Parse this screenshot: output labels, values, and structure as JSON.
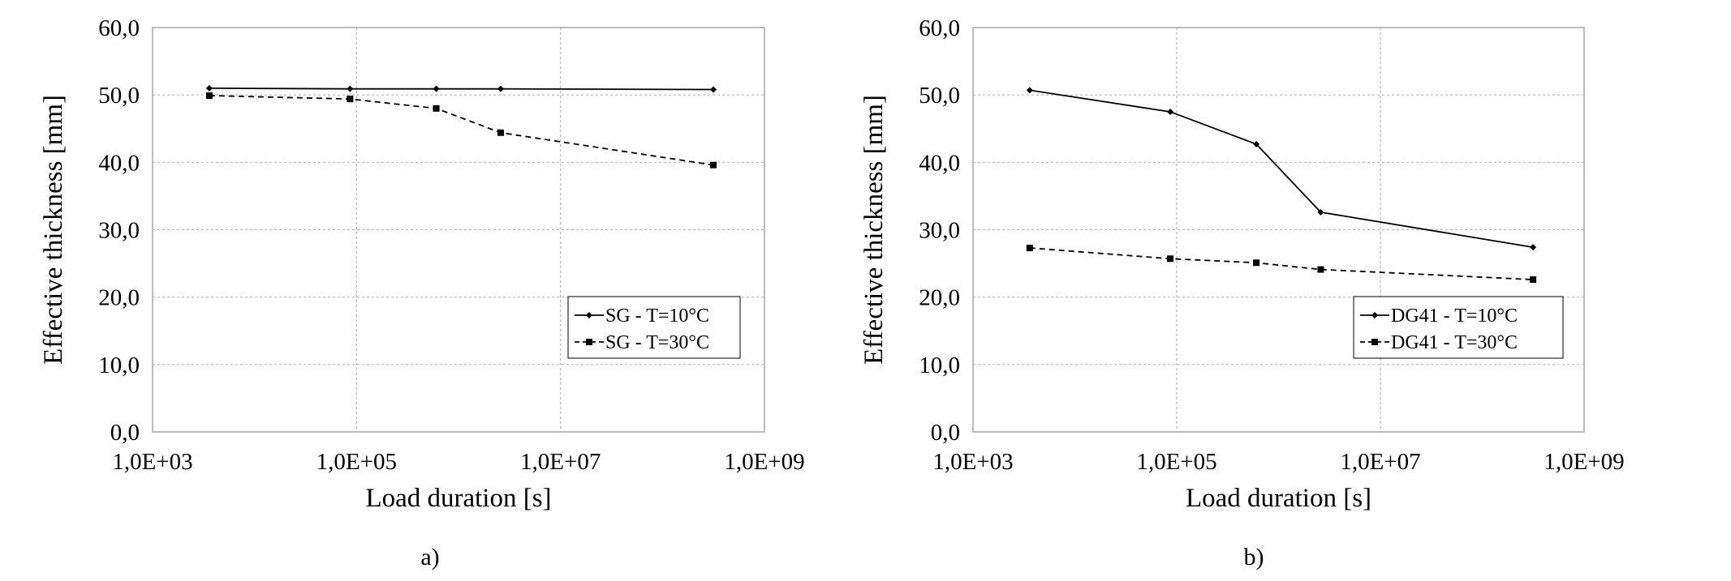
{
  "chart_data": [
    {
      "type": "line",
      "caption": "a)",
      "xlabel": "Load duration [s]",
      "ylabel": "Effective thickness [mm]",
      "xscale": "log",
      "xlim": [
        1000,
        1000000000
      ],
      "ylim": [
        0,
        60
      ],
      "xticks": [
        1000,
        100000,
        10000000,
        1000000000
      ],
      "xtick_labels": [
        "1,0E+03",
        "1,0E+05",
        "1,0E+07",
        "1,0E+09"
      ],
      "yticks": [
        0,
        10,
        20,
        30,
        40,
        50,
        60
      ],
      "ytick_labels": [
        "0,0",
        "10,0",
        "20,0",
        "30,0",
        "40,0",
        "50,0",
        "60,0"
      ],
      "grid": true,
      "legend_position": "bottom-right",
      "series": [
        {
          "name": "SG - T=10°C",
          "style": "solid",
          "marker": "diamond",
          "x": [
            3600,
            86400,
            604800,
            2592000,
            315360000
          ],
          "y": [
            51.0,
            50.9,
            50.9,
            50.9,
            50.8
          ]
        },
        {
          "name": "SG - T=30°C",
          "style": "dashed",
          "marker": "square",
          "x": [
            3600,
            86400,
            604800,
            2592000,
            315360000
          ],
          "y": [
            49.9,
            49.4,
            48.0,
            44.4,
            39.6
          ]
        }
      ]
    },
    {
      "type": "line",
      "caption": "b)",
      "xlabel": "Load duration [s]",
      "ylabel": "Effective thickness [mm]",
      "xscale": "log",
      "xlim": [
        1000,
        1000000000
      ],
      "ylim": [
        0,
        60
      ],
      "xticks": [
        1000,
        100000,
        10000000,
        1000000000
      ],
      "xtick_labels": [
        "1,0E+03",
        "1,0E+05",
        "1,0E+07",
        "1,0E+09"
      ],
      "yticks": [
        0,
        10,
        20,
        30,
        40,
        50,
        60
      ],
      "ytick_labels": [
        "0,0",
        "10,0",
        "20,0",
        "30,0",
        "40,0",
        "50,0",
        "60,0"
      ],
      "grid": true,
      "legend_position": "bottom-right",
      "series": [
        {
          "name": "DG41 - T=10°C",
          "style": "solid",
          "marker": "diamond",
          "x": [
            3600,
            86400,
            604800,
            2592000,
            315360000
          ],
          "y": [
            50.7,
            47.5,
            42.7,
            32.6,
            27.4
          ]
        },
        {
          "name": "DG41 - T=30°C",
          "style": "dashed",
          "marker": "square",
          "x": [
            3600,
            86400,
            604800,
            2592000,
            315360000
          ],
          "y": [
            27.3,
            25.7,
            25.1,
            24.1,
            22.6
          ]
        }
      ]
    }
  ]
}
